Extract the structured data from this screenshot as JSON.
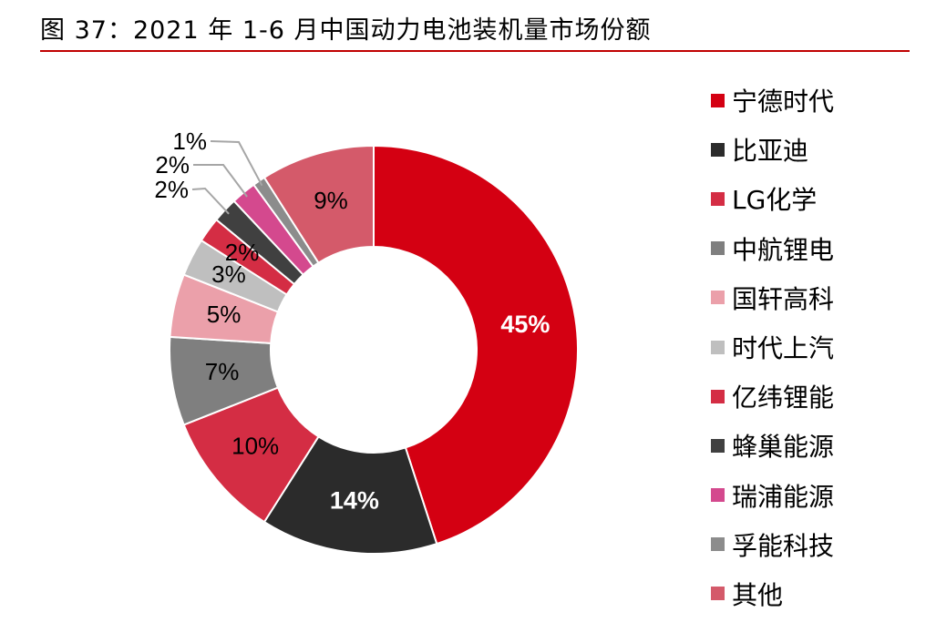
{
  "title": "图 37：2021 年 1-6 月中国动力电池装机量市场份额",
  "chart_data": {
    "type": "pie",
    "style": "donut",
    "title": "图 37：2021 年 1-6 月中国动力电池装机量市场份额",
    "slices": [
      {
        "name": "宁德时代",
        "value": 45,
        "label": "45%",
        "color": "#d40012",
        "label_color": "#ffffff",
        "label_bold": true
      },
      {
        "name": "比亚迪",
        "value": 14,
        "label": "14%",
        "color": "#2b2b2b",
        "label_color": "#ffffff",
        "label_bold": true
      },
      {
        "name": "LG化学",
        "value": 10,
        "label": "10%",
        "color": "#d42d44",
        "label_color": "#000000",
        "label_bold": false
      },
      {
        "name": "中航锂电",
        "value": 7,
        "label": "7%",
        "color": "#7f7f7f",
        "label_color": "#000000",
        "label_bold": false
      },
      {
        "name": "国轩高科",
        "value": 5,
        "label": "5%",
        "color": "#eba0aa",
        "label_color": "#000000",
        "label_bold": false
      },
      {
        "name": "时代上汽",
        "value": 3,
        "label": "3%",
        "color": "#bfbfbf",
        "label_color": "#000000",
        "label_bold": false
      },
      {
        "name": "亿纬锂能",
        "value": 2,
        "label": "2%",
        "color": "#d42d44",
        "label_color": "#000000",
        "label_bold": false
      },
      {
        "name": "蜂巢能源",
        "value": 2,
        "label": "2%",
        "color": "#404040",
        "label_color": "#000000",
        "label_bold": false
      },
      {
        "name": "瑞浦能源",
        "value": 2,
        "label": "2%",
        "color": "#d4498e",
        "label_color": "#000000",
        "label_bold": false
      },
      {
        "name": "孚能科技",
        "value": 1,
        "label": "1%",
        "color": "#8c8c8c",
        "label_color": "#000000",
        "label_bold": false
      },
      {
        "name": "其他",
        "value": 9,
        "label": "9%",
        "color": "#d45a6a",
        "label_color": "#000000",
        "label_bold": false
      }
    ],
    "legend_position": "right",
    "leader_line_color": "#a6a6a6"
  }
}
